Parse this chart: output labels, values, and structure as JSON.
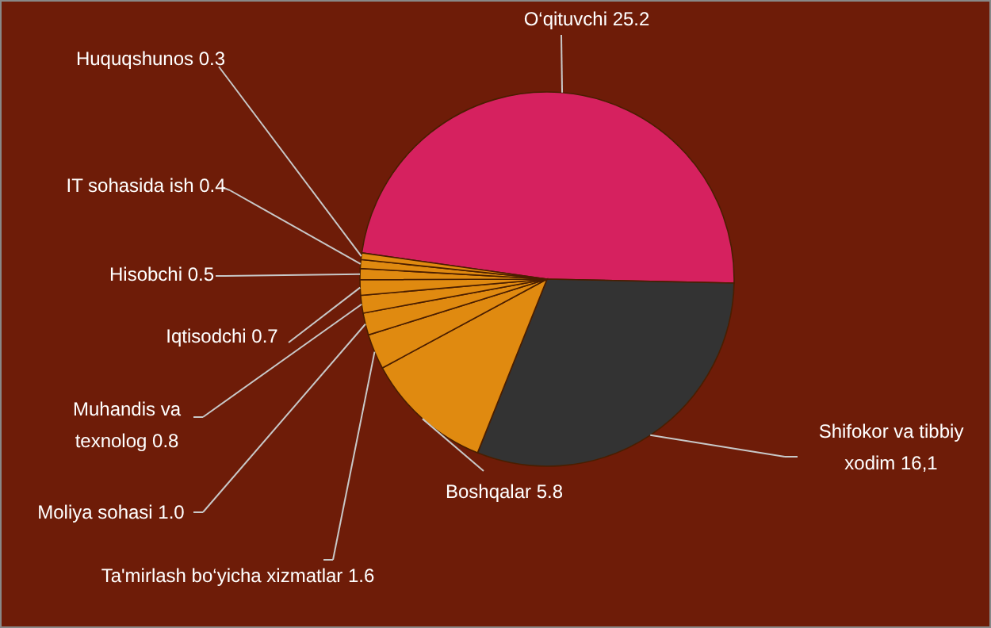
{
  "chart_data": {
    "type": "pie",
    "categories": [
      "O‘qituvchi",
      "Shifokor va tibbiy xodim",
      "Boshqalar",
      "Ta'mirlash bo‘yicha xizmatlar",
      "Moliya sohasi",
      "Muhandis va texnolog",
      "Iqtisodchi",
      "Hisobchi",
      "IT sohasida ish",
      "Huquqshunos"
    ],
    "values": [
      25.2,
      16.1,
      5.8,
      1.6,
      1.0,
      0.8,
      0.7,
      0.5,
      0.4,
      0.3
    ],
    "value_labels": [
      "25.2",
      "16,1",
      "5.8",
      "1.6",
      "1.0",
      "0.8",
      "0.7",
      "0.5",
      "0.4",
      "0.3"
    ],
    "colors": [
      "#d6215f",
      "#333333",
      "#e08a10",
      "#e08a10",
      "#e08a10",
      "#e08a10",
      "#e08a10",
      "#e08a10",
      "#e08a10",
      "#e08a10"
    ]
  }
}
